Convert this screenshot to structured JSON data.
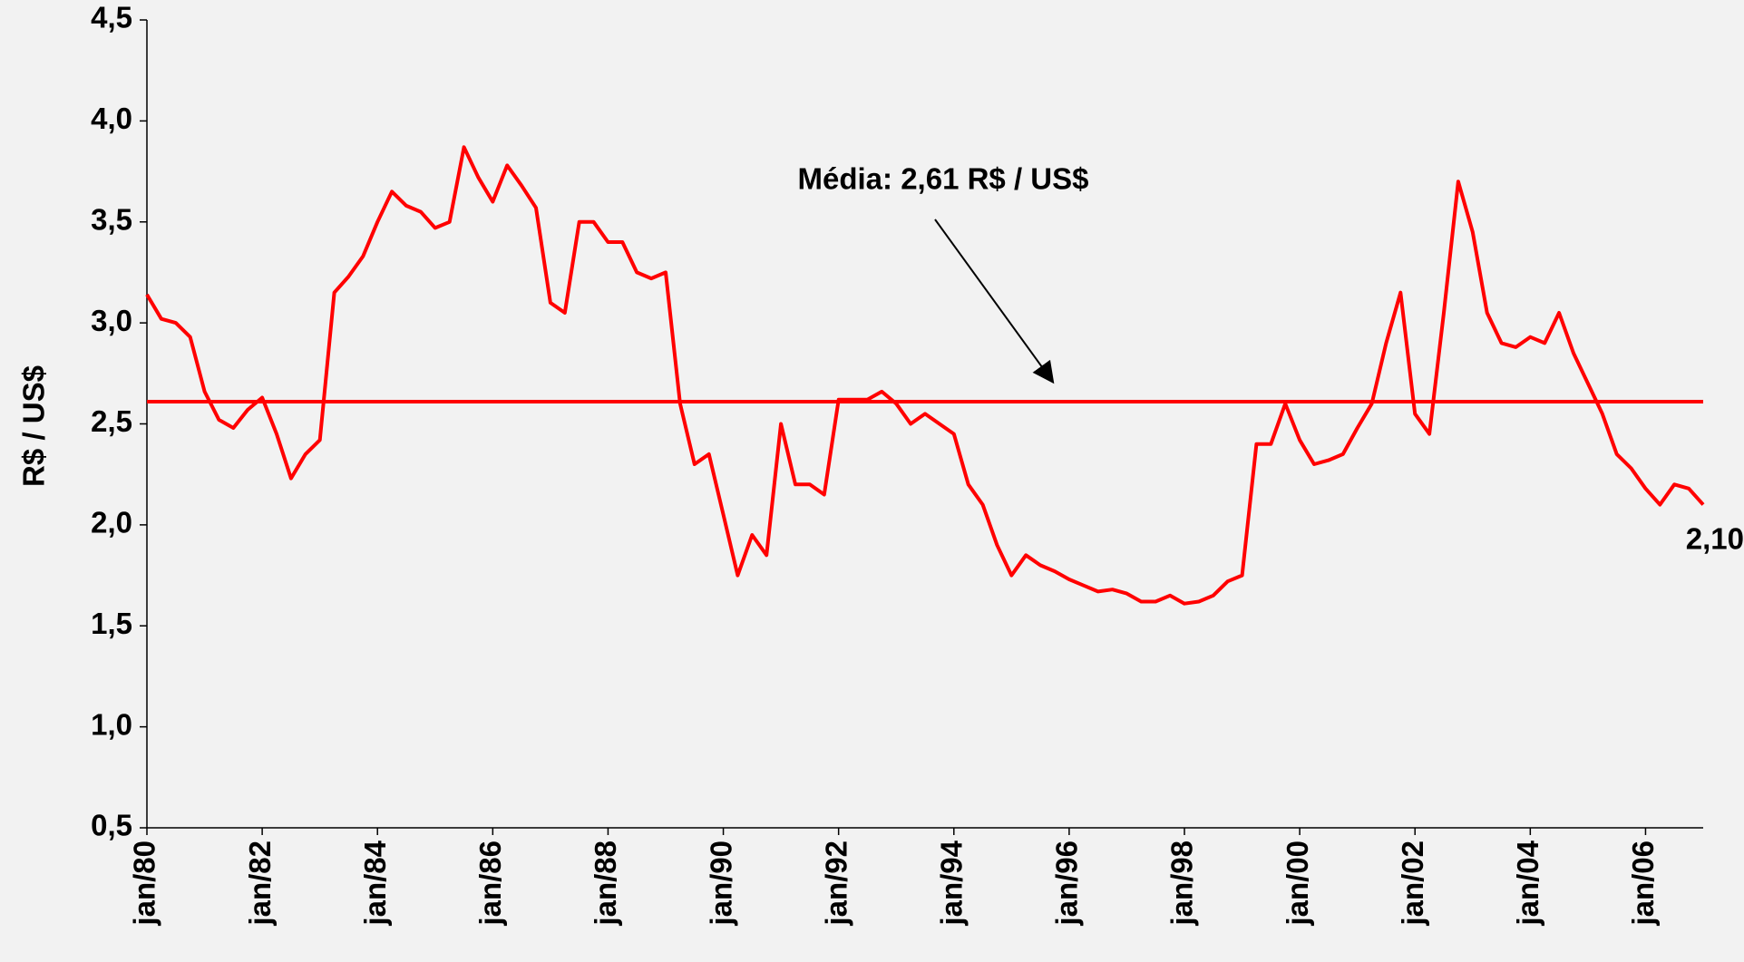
{
  "chart_data": {
    "type": "line",
    "ylabel": "R$ / US$",
    "annotation": "Média: 2,61 R$ / US$",
    "mean": 2.61,
    "color": "#ff0000",
    "categories": [
      "jan/80",
      null,
      null,
      null,
      null,
      null,
      null,
      null,
      "jan/82",
      null,
      null,
      null,
      null,
      null,
      null,
      null,
      "jan/84",
      null,
      null,
      null,
      null,
      null,
      null,
      null,
      "jan/86",
      null,
      null,
      null,
      null,
      null,
      null,
      null,
      "jan/88",
      null,
      null,
      null,
      null,
      null,
      null,
      null,
      "jan/90",
      null,
      null,
      null,
      null,
      null,
      null,
      null,
      "jan/92",
      null,
      null,
      null,
      null,
      null,
      null,
      null,
      "jan/94",
      null,
      null,
      null,
      null,
      null,
      null,
      null,
      "jan/96",
      null,
      null,
      null,
      null,
      null,
      null,
      null,
      "jan/98",
      null,
      null,
      null,
      null,
      null,
      null,
      null,
      "jan/00",
      null,
      null,
      null,
      null,
      null,
      null,
      null,
      "jan/02",
      null,
      null,
      null,
      null,
      null,
      null,
      null,
      "jan/04",
      null,
      null,
      null,
      null,
      null,
      null,
      null,
      "jan/06",
      null,
      null,
      null,
      null
    ],
    "values": [
      3.14,
      3.02,
      3.0,
      2.93,
      2.66,
      2.52,
      2.48,
      2.57,
      2.63,
      2.45,
      2.23,
      2.35,
      2.42,
      3.15,
      3.23,
      3.33,
      3.5,
      3.65,
      3.58,
      3.55,
      3.47,
      3.5,
      3.87,
      3.72,
      3.6,
      3.78,
      3.68,
      3.57,
      3.1,
      3.05,
      3.5,
      3.5,
      3.4,
      3.4,
      3.25,
      3.22,
      3.25,
      2.6,
      2.3,
      2.35,
      2.05,
      1.75,
      1.95,
      1.85,
      2.5,
      2.2,
      2.2,
      2.15,
      2.62,
      2.62,
      2.62,
      2.66,
      2.6,
      2.5,
      2.55,
      2.5,
      2.45,
      2.2,
      2.1,
      1.9,
      1.75,
      1.85,
      1.8,
      1.77,
      1.73,
      1.7,
      1.67,
      1.68,
      1.66,
      1.62,
      1.62,
      1.65,
      1.61,
      1.62,
      1.65,
      1.72,
      1.75,
      2.4,
      2.4,
      2.6,
      2.42,
      2.3,
      2.32,
      2.35,
      2.48,
      2.6,
      2.9,
      3.15,
      2.55,
      2.45,
      3.05,
      3.7,
      3.45,
      3.05,
      2.9,
      2.88,
      2.93,
      2.9,
      3.05,
      2.85,
      2.7,
      2.55,
      2.35,
      2.28,
      2.18,
      2.1,
      2.2,
      2.18,
      2.1
    ],
    "value_labels": [
      null,
      null,
      null,
      null,
      null,
      null,
      null,
      null,
      null,
      null,
      null,
      null,
      null,
      null,
      null,
      null,
      null,
      null,
      null,
      null,
      null,
      null,
      null,
      null,
      null,
      null,
      null,
      null,
      null,
      null,
      null,
      null,
      null,
      null,
      null,
      null,
      null,
      null,
      null,
      null,
      null,
      null,
      null,
      null,
      null,
      null,
      null,
      null,
      null,
      null,
      null,
      null,
      null,
      null,
      null,
      null,
      null,
      null,
      null,
      null,
      null,
      null,
      null,
      null,
      null,
      null,
      null,
      null,
      null,
      null,
      null,
      null,
      null,
      null,
      null,
      null,
      null,
      null,
      null,
      null,
      null,
      null,
      null,
      null,
      null,
      null,
      null,
      null,
      null,
      null,
      null,
      null,
      null,
      null,
      null,
      null,
      null,
      null,
      null,
      null,
      null,
      null,
      null,
      null,
      null,
      null,
      null,
      null,
      "2,10"
    ],
    "ylim": [
      0.5,
      4.5
    ],
    "yticks": [
      {
        "value": 0.5,
        "label": "0,5"
      },
      {
        "value": 1,
        "label": "1,0"
      },
      {
        "value": 1.5,
        "label": "1,5"
      },
      {
        "value": 2,
        "label": "2,0"
      },
      {
        "value": 2.5,
        "label": "2,5"
      },
      {
        "value": 3,
        "label": "3,0"
      },
      {
        "value": 3.5,
        "label": "3,5"
      },
      {
        "value": 4,
        "label": "4,0"
      },
      {
        "value": 4.5,
        "label": "4,5"
      }
    ]
  }
}
